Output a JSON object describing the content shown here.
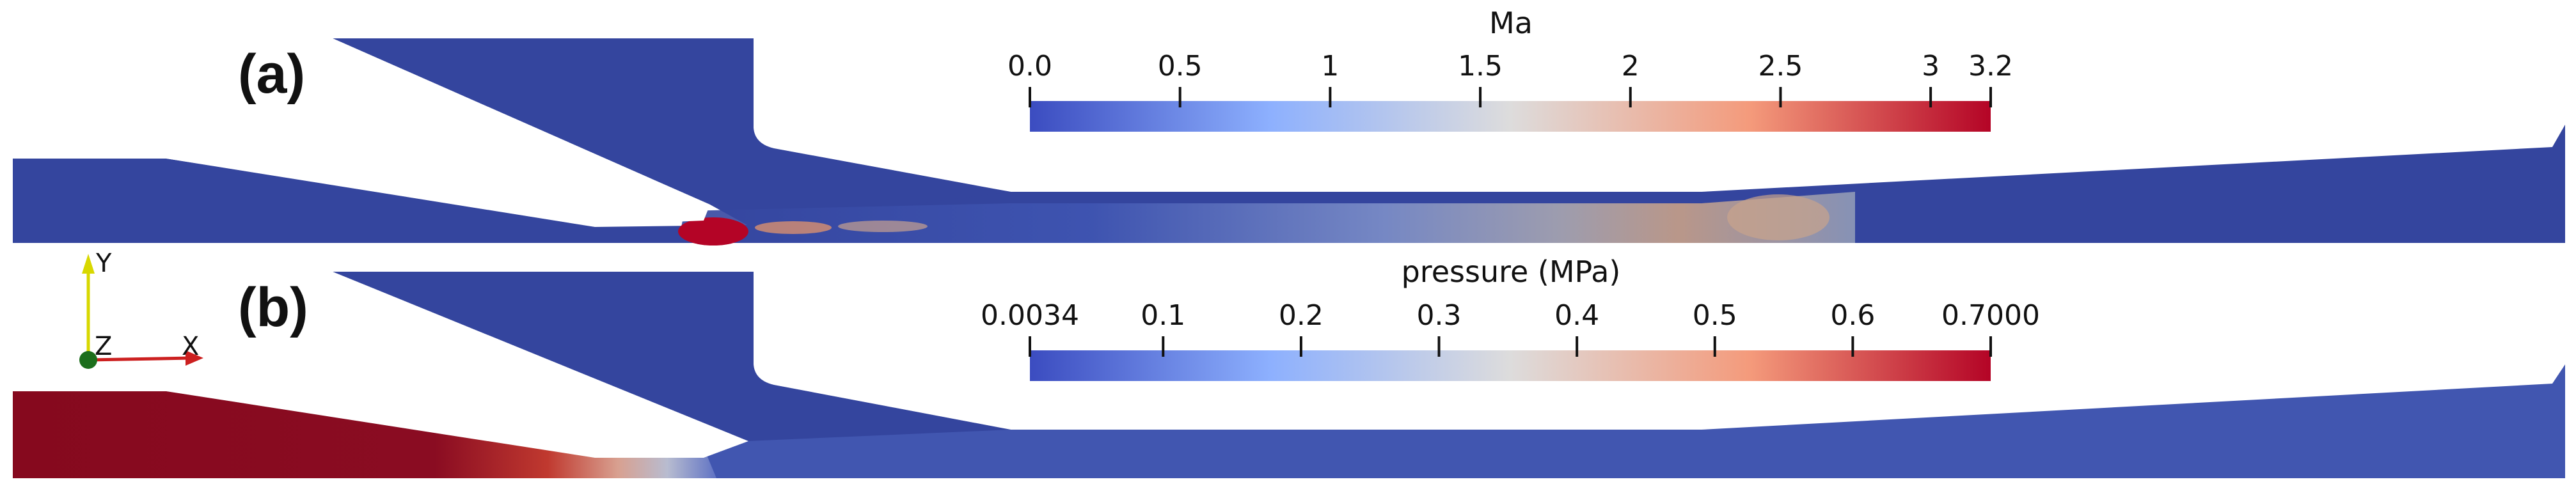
{
  "panels": [
    {
      "label": "(a)",
      "colorbar": {
        "title": "Ma",
        "ticks": [
          "0.0",
          "0.5",
          "1",
          "1.5",
          "2",
          "2.5",
          "3",
          "3.2"
        ],
        "range": [
          0.0,
          3.2
        ]
      }
    },
    {
      "label": "(b)",
      "colorbar": {
        "title": "pressure (MPa)",
        "ticks": [
          "0.0034",
          "0.1",
          "0.2",
          "0.3",
          "0.4",
          "0.5",
          "0.6",
          "0.7000"
        ],
        "range": [
          0.0034,
          0.7
        ]
      }
    }
  ],
  "orientation_axes": {
    "y": "Y",
    "z": "Z",
    "x": "X"
  },
  "colors": {
    "colormap": [
      "#3b4cc0",
      "#8db0fe",
      "#dddcdc",
      "#f49a7b",
      "#b40426"
    ],
    "low_field": "#34459e",
    "high_field": "#86091e"
  },
  "icons": {
    "orientation_axes": "xyz-axes-icon"
  }
}
